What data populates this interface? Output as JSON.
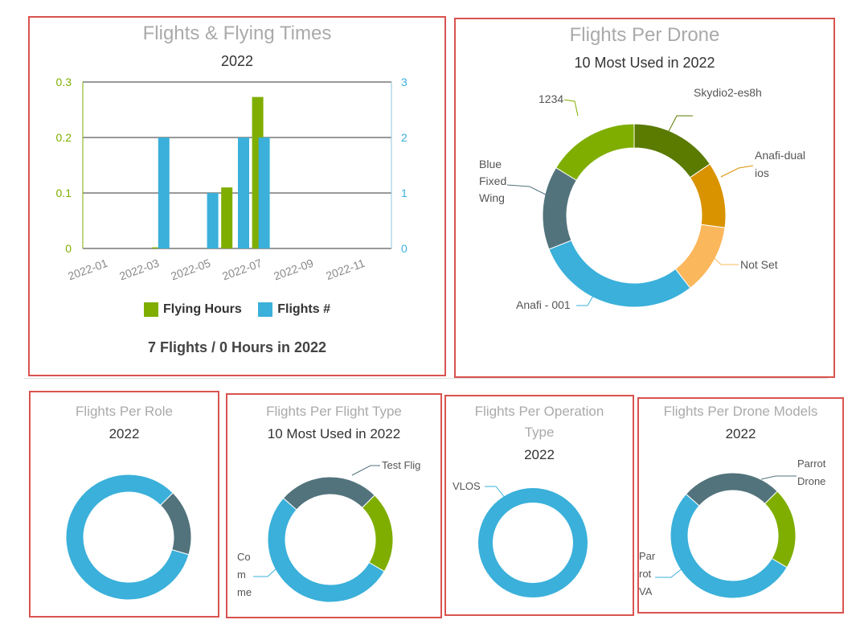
{
  "panels": {
    "flights_times": {
      "title": "Flights & Flying Times",
      "subtitle": "2022",
      "legend": {
        "hours": "Flying Hours",
        "flights": "Flights #"
      },
      "summary": "7 Flights / 0 Hours in 2022"
    },
    "per_drone": {
      "title": "Flights Per Drone",
      "subtitle": "10 Most Used in 2022"
    },
    "per_role": {
      "title": "Flights Per Role",
      "subtitle": "2022"
    },
    "per_flight_type": {
      "title": "Flights Per Flight Type",
      "subtitle": "10 Most Used in 2022"
    },
    "per_operation_type": {
      "title_line1": "Flights Per Operation",
      "title_line2": "Type",
      "subtitle": "2022"
    },
    "per_drone_models": {
      "title": "Flights Per Drone Models",
      "subtitle": "2022"
    }
  },
  "colors": {
    "green": "#7fae00",
    "blue": "#3ab0da",
    "darkgreen": "#5a7a00",
    "orange": "#d99300",
    "lightorange": "#fbb75c",
    "slate": "#52737c"
  },
  "chart_data": [
    {
      "id": "flights_times",
      "type": "bar",
      "x_ticks": [
        "2022-01",
        "2022-03",
        "2022-05",
        "2022-07",
        "2022-09",
        "2022-11"
      ],
      "y_left": {
        "ticks": [
          "0",
          "0.1",
          "0.2",
          "0.3"
        ],
        "range": [
          0,
          0.3
        ],
        "color": "#7fae00"
      },
      "y_right": {
        "ticks": [
          "0",
          "1",
          "2",
          "3"
        ],
        "range": [
          0,
          3
        ],
        "color": "#3ab0da"
      },
      "x_range": [
        0,
        12
      ],
      "series": [
        {
          "name": "Flying Hours",
          "axis": "left",
          "color": "#7fae00",
          "points": [
            {
              "x": 2.9,
              "y": 0.002
            },
            {
              "x": 5.6,
              "y": 0.11
            },
            {
              "x": 6.8,
              "y": 0.273
            }
          ]
        },
        {
          "name": "Flights #",
          "axis": "right",
          "color": "#3ab0da",
          "points": [
            {
              "x": 3.15,
              "y": 2
            },
            {
              "x": 5.05,
              "y": 1
            },
            {
              "x": 6.25,
              "y": 2
            },
            {
              "x": 7.05,
              "y": 2
            }
          ]
        }
      ]
    },
    {
      "id": "per_drone",
      "type": "pie",
      "slices": [
        {
          "label": "Skydio2-es8h",
          "value": 1,
          "color": "#5a7a00"
        },
        {
          "label": "Anafi-dual ios",
          "value": 0.75,
          "color": "#d99300"
        },
        {
          "label": "Not Set",
          "value": 0.8,
          "color": "#fbb75c"
        },
        {
          "label": "Anafi - 001",
          "value": 1.9,
          "color": "#3ab0da"
        },
        {
          "label": "Blue Fixed Wing",
          "value": 0.95,
          "color": "#52737c"
        },
        {
          "label": "1234",
          "value": 1.05,
          "color": "#7fae00"
        }
      ]
    },
    {
      "id": "per_role",
      "type": "pie",
      "slices": [
        {
          "label": "",
          "value": 17,
          "color": "#52737c"
        },
        {
          "label": "",
          "value": 83,
          "color": "#3ab0da"
        }
      ]
    },
    {
      "id": "per_flight_type",
      "type": "pie",
      "slices": [
        {
          "label": "",
          "value": 21,
          "color": "#7fae00"
        },
        {
          "label": "",
          "value": 53,
          "color": "#3ab0da"
        },
        {
          "label": "Test Flig",
          "value": 26,
          "color": "#52737c"
        }
      ]
    },
    {
      "id": "per_operation_type",
      "type": "pie",
      "slices": [
        {
          "label": "VLOS",
          "value": 100,
          "color": "#3ab0da"
        }
      ]
    },
    {
      "id": "per_drone_models",
      "type": "pie",
      "slices": [
        {
          "label": "",
          "value": 21,
          "color": "#7fae00"
        },
        {
          "label": "",
          "value": 53,
          "color": "#3ab0da"
        },
        {
          "label": "Parrot Drone",
          "value": 26,
          "color": "#52737c"
        }
      ]
    }
  ]
}
